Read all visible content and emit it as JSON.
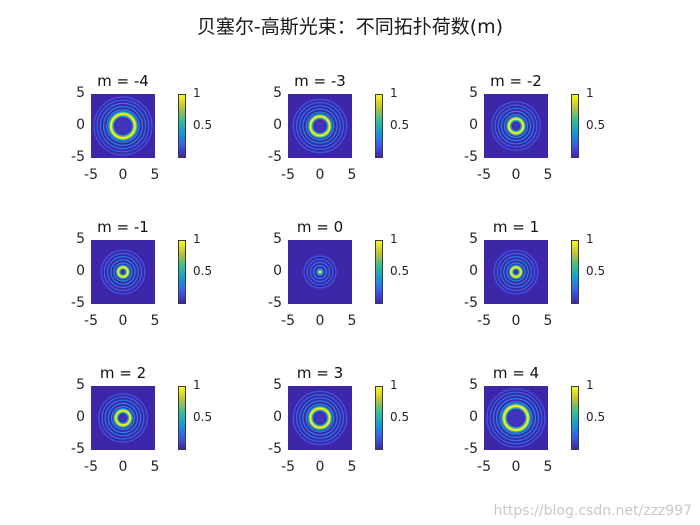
{
  "figure": {
    "title": "贝塞尔-高斯光束：不同拓扑荷数(m)",
    "watermark": "https://blog.csdn.net/zzz997"
  },
  "chart_data": {
    "type": "heatmap",
    "colormap": "parula",
    "panels": [
      {
        "title": "m = -4",
        "m": -4,
        "ring_radius": 0.45
      },
      {
        "title": "m = -3",
        "m": -3,
        "ring_radius": 0.36
      },
      {
        "title": "m = -2",
        "m": -2,
        "ring_radius": 0.27
      },
      {
        "title": "m = -1",
        "m": -1,
        "ring_radius": 0.18
      },
      {
        "title": "m = 0",
        "m": 0,
        "ring_radius": 0.0
      },
      {
        "title": "m = 1",
        "m": 1,
        "ring_radius": 0.18
      },
      {
        "title": "m = 2",
        "m": 2,
        "ring_radius": 0.27
      },
      {
        "title": "m = 3",
        "m": 3,
        "ring_radius": 0.36
      },
      {
        "title": "m = 4",
        "m": 4,
        "ring_radius": 0.45
      }
    ],
    "x_ticks": [
      "-5",
      "0",
      "5"
    ],
    "y_ticks": [
      "5",
      "0",
      "-5"
    ],
    "xlim": [
      -5,
      5
    ],
    "ylim": [
      -5,
      5
    ],
    "colorbar_ticks": [
      "1",
      "0.5"
    ],
    "clim": [
      0,
      1
    ]
  }
}
